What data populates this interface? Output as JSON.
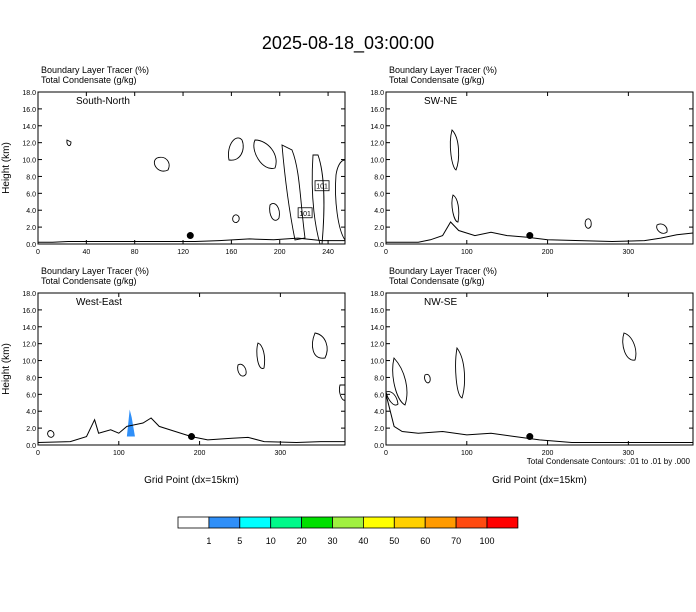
{
  "title": "2025-08-18_03:00:00",
  "footer_note": "Total Condensate Contours: .01 to .01 by .000",
  "colorbar": {
    "labels": [
      "1",
      "5",
      "10",
      "20",
      "30",
      "40",
      "50",
      "60",
      "70",
      "100"
    ],
    "colors": [
      "#ffffff",
      "#2f8ff8",
      "#00ffff",
      "#00f98a",
      "#00e000",
      "#a0f040",
      "#ffff00",
      "#ffd000",
      "#ff9a00",
      "#ff4a10",
      "#ff0000"
    ]
  },
  "chart_data": [
    {
      "type": "contour",
      "panel": "South-North",
      "header_lines": [
        "Boundary Layer Tracer   (%)",
        "Total Condensate   (g/kg)"
      ],
      "ylabel": "Height (km)",
      "xlabel": "",
      "xlim": [
        0,
        254
      ],
      "xticks": [
        0,
        40,
        80,
        120,
        160,
        200,
        240
      ],
      "ylim": [
        0,
        18
      ],
      "yticks": [
        0.0,
        2.0,
        4.0,
        6.0,
        8.0,
        10.0,
        12.0,
        14.0,
        16.0,
        18.0
      ],
      "marker": {
        "x": 126,
        "y": 1.0
      },
      "boundary_layer_line": [
        [
          0,
          0.2
        ],
        [
          12,
          0.2
        ],
        [
          25,
          0.3
        ],
        [
          60,
          0.3
        ],
        [
          100,
          0.3
        ],
        [
          130,
          0.3
        ],
        [
          150,
          0.4
        ],
        [
          175,
          0.6
        ],
        [
          195,
          0.5
        ],
        [
          215,
          0.7
        ],
        [
          235,
          0.4
        ],
        [
          254,
          0.4
        ]
      ],
      "contour_labels": [
        {
          "text": "101",
          "x": 235,
          "y": 6.9
        },
        {
          "text": "101",
          "x": 221,
          "y": 3.7
        }
      ]
    },
    {
      "type": "contour",
      "panel": "SW-NE",
      "header_lines": [
        "Boundary Layer Tracer   (%)",
        "Total Condensate   (g/kg)"
      ],
      "ylabel": "",
      "xlabel": "",
      "xlim": [
        0,
        380
      ],
      "xticks": [
        0,
        100,
        200,
        300
      ],
      "ylim": [
        0,
        18
      ],
      "yticks": [
        0.0,
        2.0,
        4.0,
        6.0,
        8.0,
        10.0,
        12.0,
        14.0,
        16.0,
        18.0
      ],
      "marker": {
        "x": 178,
        "y": 1.0
      },
      "boundary_layer_line": [
        [
          0,
          0.2
        ],
        [
          40,
          0.2
        ],
        [
          55,
          0.5
        ],
        [
          70,
          1.0
        ],
        [
          80,
          2.6
        ],
        [
          90,
          1.6
        ],
        [
          110,
          1.0
        ],
        [
          130,
          1.4
        ],
        [
          150,
          1.0
        ],
        [
          175,
          0.8
        ],
        [
          200,
          0.5
        ],
        [
          240,
          0.4
        ],
        [
          280,
          0.3
        ],
        [
          320,
          0.4
        ],
        [
          340,
          0.7
        ],
        [
          360,
          1.1
        ],
        [
          380,
          1.3
        ]
      ],
      "contour_labels": []
    },
    {
      "type": "contour",
      "panel": "West-East",
      "header_lines": [
        "Boundary Layer Tracer   (%)",
        "Total Condensate   (g/kg)"
      ],
      "ylabel": "Height (km)",
      "xlabel": "Grid Point (dx=15km)",
      "xlim": [
        0,
        380
      ],
      "xticks": [
        0,
        100,
        200,
        300
      ],
      "ylim": [
        0,
        18
      ],
      "yticks": [
        0.0,
        2.0,
        4.0,
        6.0,
        8.0,
        10.0,
        12.0,
        14.0,
        16.0,
        18.0
      ],
      "marker": {
        "x": 190,
        "y": 1.0
      },
      "boundary_layer_line": [
        [
          0,
          0.3
        ],
        [
          40,
          0.4
        ],
        [
          60,
          1.0
        ],
        [
          70,
          3.0
        ],
        [
          75,
          1.4
        ],
        [
          90,
          1.8
        ],
        [
          100,
          1.4
        ],
        [
          110,
          2.2
        ],
        [
          130,
          2.6
        ],
        [
          140,
          3.2
        ],
        [
          150,
          2.2
        ],
        [
          170,
          1.6
        ],
        [
          190,
          1.0
        ],
        [
          210,
          0.6
        ],
        [
          240,
          0.8
        ],
        [
          260,
          0.9
        ],
        [
          280,
          0.4
        ],
        [
          320,
          0.3
        ],
        [
          350,
          0.4
        ],
        [
          380,
          0.4
        ]
      ],
      "contour_labels": [],
      "tracer_shading": {
        "x_range": [
          110,
          120
        ],
        "y_range": [
          1.0,
          4.2
        ],
        "level": "5"
      }
    },
    {
      "type": "contour",
      "panel": "NW-SE",
      "header_lines": [
        "Boundary Layer Tracer   (%)",
        "Total Condensate   (g/kg)"
      ],
      "ylabel": "",
      "xlabel": "Grid Point (dx=15km)",
      "xlim": [
        0,
        380
      ],
      "xticks": [
        0,
        100,
        200,
        300
      ],
      "ylim": [
        0,
        18
      ],
      "yticks": [
        0.0,
        2.0,
        4.0,
        6.0,
        8.0,
        10.0,
        12.0,
        14.0,
        16.0,
        18.0
      ],
      "marker": {
        "x": 178,
        "y": 1.0
      },
      "boundary_layer_line": [
        [
          0,
          6.0
        ],
        [
          10,
          2.2
        ],
        [
          20,
          1.6
        ],
        [
          40,
          1.4
        ],
        [
          70,
          1.6
        ],
        [
          100,
          1.2
        ],
        [
          130,
          1.4
        ],
        [
          160,
          1.0
        ],
        [
          190,
          0.6
        ],
        [
          230,
          0.3
        ],
        [
          270,
          0.3
        ],
        [
          300,
          0.3
        ],
        [
          340,
          0.3
        ],
        [
          380,
          0.3
        ]
      ],
      "contour_labels": []
    }
  ]
}
